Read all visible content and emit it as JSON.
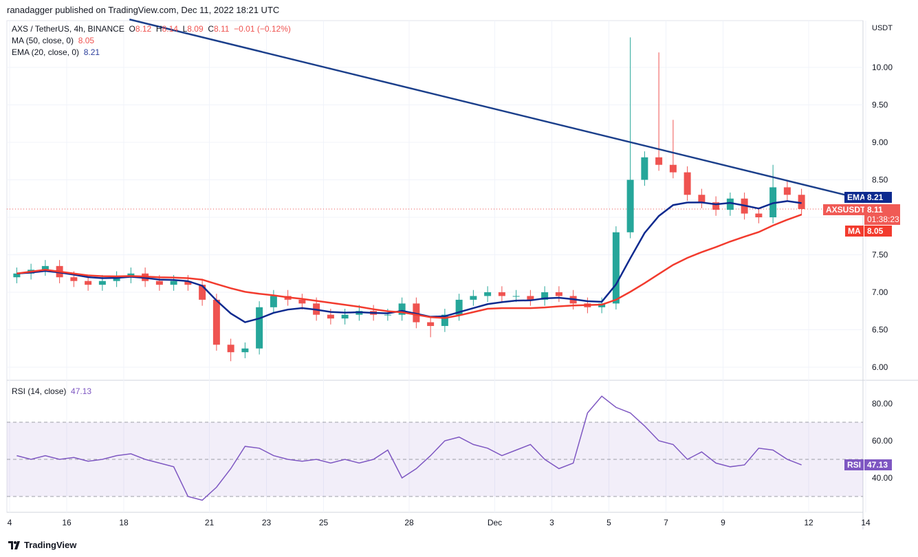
{
  "header": {
    "published": "ranadagger published on TradingView.com, Dec 11, 2022 18:21 UTC"
  },
  "legend": {
    "symbol": "AXS / TetherUS, 4h, BINANCE",
    "o_label": "O",
    "o": "8.12",
    "h_label": "H",
    "h": "8.14",
    "l_label": "L",
    "l": "8.09",
    "c_label": "C",
    "c": "8.11",
    "change": "−0.01 (−0.12%)",
    "ma": "MA (50, close, 0)",
    "ma_val": "8.05",
    "ema": "EMA (20, close, 0)",
    "ema_val": "8.21",
    "rsi": "RSI (14, close)",
    "rsi_val": "47.13"
  },
  "tags": {
    "ema_label": "EMA",
    "ema_val": "8.21",
    "sym_label": "AXSUSDT",
    "price": "8.11",
    "countdown": "01:38:23",
    "ma_label": "MA",
    "ma_val": "8.05",
    "rsi_label": "RSI",
    "rsi_val": "47.13"
  },
  "colors": {
    "up": "#26a69a",
    "down": "#ef5350",
    "ema": "#0d2a8f",
    "ma": "#f23b2e",
    "rsi": "#7e57c2",
    "trend": "#1b3f8b"
  },
  "footer": {
    "brand": "TradingView"
  },
  "chart_data": {
    "type": "candlestick",
    "currency": "USDT",
    "price_ticks": [
      "10.00",
      "9.50",
      "9.00",
      "8.50",
      "8.00",
      "7.50",
      "7.00",
      "6.50",
      "6.00"
    ],
    "price_range": [
      5.75,
      10.85
    ],
    "rsi_ticks": [
      "80.00",
      "60.00",
      "40.00"
    ],
    "rsi_bands": [
      70,
      30
    ],
    "x_ticks": [
      {
        "label": "4",
        "day": 0
      },
      {
        "label": "16",
        "day": 2
      },
      {
        "label": "18",
        "day": 4
      },
      {
        "label": "21",
        "day": 7
      },
      {
        "label": "23",
        "day": 9
      },
      {
        "label": "25",
        "day": 11
      },
      {
        "label": "28",
        "day": 14
      },
      {
        "label": "Dec",
        "day": 17
      },
      {
        "label": "3",
        "day": 19
      },
      {
        "label": "5",
        "day": 21
      },
      {
        "label": "7",
        "day": 23
      },
      {
        "label": "9",
        "day": 25
      },
      {
        "label": "12",
        "day": 28
      },
      {
        "label": "14",
        "day": 30
      }
    ],
    "closes": [
      7.25,
      7.3,
      7.35,
      7.2,
      7.15,
      7.1,
      7.15,
      7.2,
      7.25,
      7.15,
      7.1,
      7.15,
      7.1,
      6.9,
      6.3,
      6.2,
      6.25,
      6.8,
      6.95,
      6.9,
      6.85,
      6.7,
      6.65,
      6.7,
      6.75,
      6.7,
      6.7,
      6.85,
      6.6,
      6.55,
      6.7,
      6.9,
      6.95,
      7.0,
      6.95,
      6.95,
      6.9,
      7.0,
      6.95,
      6.85,
      6.8,
      6.85,
      7.8,
      8.5,
      8.8,
      8.7,
      8.6,
      8.3,
      8.2,
      8.1,
      8.25,
      8.05,
      8.0,
      8.4,
      8.3,
      8.11
    ],
    "spike_highs": {
      "43": 10.4,
      "45": 10.2,
      "46": 9.3,
      "53": 8.7
    },
    "spike_lows": {
      "15": 6.08,
      "29": 6.4
    },
    "rsi": [
      52,
      50,
      52,
      50,
      51,
      49,
      50,
      52,
      53,
      50,
      48,
      46,
      30,
      28,
      35,
      45,
      57,
      56,
      52,
      50,
      49,
      50,
      48,
      50,
      48,
      50,
      55,
      40,
      45,
      52,
      60,
      62,
      58,
      56,
      52,
      55,
      58,
      50,
      45,
      48,
      75,
      84,
      78,
      75,
      68,
      60,
      58,
      50,
      54,
      48,
      46,
      47,
      56,
      55,
      50,
      47
    ],
    "trendline": [
      {
        "day": 4.2,
        "price": 10.64
      },
      {
        "day": 29.7,
        "price": 8.26
      }
    ],
    "ema_period_12h": 7,
    "ma_period_12h": 17,
    "last_price": 8.11
  }
}
